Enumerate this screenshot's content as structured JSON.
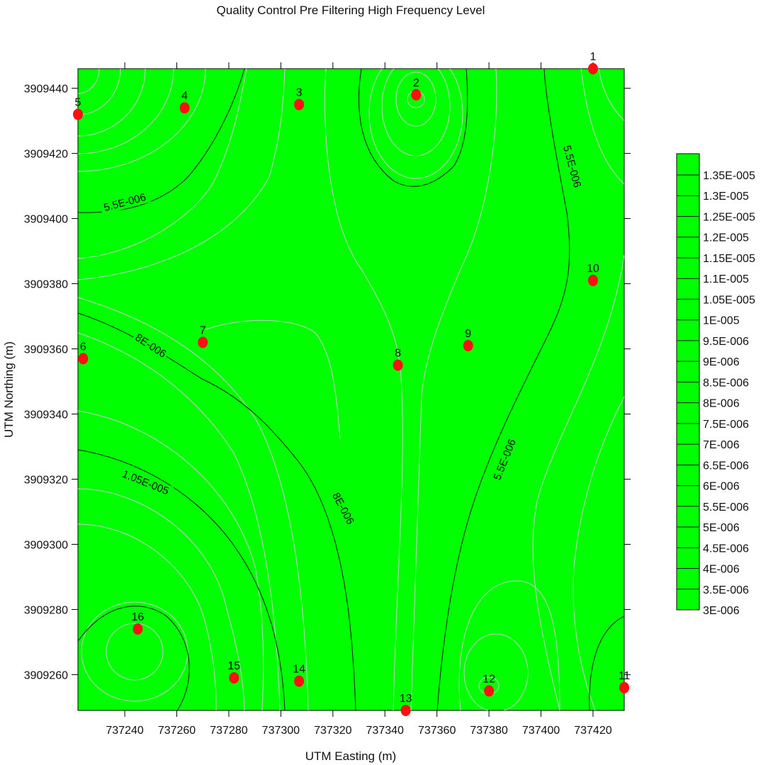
{
  "chart_data": {
    "type": "contour",
    "title": "Quality Control Pre Filtering High Frequency Level",
    "xlabel": "UTM Easting (m)",
    "ylabel": "UTM Northing (m)",
    "xlim": [
      737222,
      737432
    ],
    "ylim": [
      3909249,
      3909446
    ],
    "x_ticks": [
      737240,
      737260,
      737280,
      737300,
      737320,
      737340,
      737360,
      737380,
      737400,
      737420
    ],
    "y_ticks": [
      3909260,
      3909280,
      3909300,
      3909320,
      3909340,
      3909360,
      3909380,
      3909400,
      3909420,
      3909440
    ],
    "fill_color": "#00ff00",
    "line_color": "#1a1a1a",
    "minor_line_color": "#c8c8c8",
    "point_color": "#ff1010",
    "points": [
      {
        "label": "1",
        "x": 737420,
        "y": 3909446
      },
      {
        "label": "2",
        "x": 737352,
        "y": 3909438
      },
      {
        "label": "3",
        "x": 737307,
        "y": 3909435
      },
      {
        "label": "4",
        "x": 737263,
        "y": 3909434
      },
      {
        "label": "5",
        "x": 737222,
        "y": 3909432
      },
      {
        "label": "6",
        "x": 737224,
        "y": 3909357
      },
      {
        "label": "7",
        "x": 737270,
        "y": 3909362
      },
      {
        "label": "8",
        "x": 737345,
        "y": 3909355
      },
      {
        "label": "9",
        "x": 737372,
        "y": 3909361
      },
      {
        "label": "10",
        "x": 737420,
        "y": 3909381
      },
      {
        "label": "11",
        "x": 737432,
        "y": 3909256
      },
      {
        "label": "12",
        "x": 737380,
        "y": 3909255
      },
      {
        "label": "13",
        "x": 737348,
        "y": 3909249
      },
      {
        "label": "14",
        "x": 737307,
        "y": 3909258
      },
      {
        "label": "15",
        "x": 737282,
        "y": 3909259
      },
      {
        "label": "16",
        "x": 737245,
        "y": 3909274
      }
    ],
    "contour_labels": [
      {
        "text": "5.5E-006",
        "x": 737240,
        "y": 3909405
      },
      {
        "text": "5.5E-006",
        "x": 737412,
        "y": 3909416
      },
      {
        "text": "8E-006",
        "x": 737250,
        "y": 3909361
      },
      {
        "text": "5.5E-006",
        "x": 737386,
        "y": 3909326
      },
      {
        "text": "1.05E-005",
        "x": 737248,
        "y": 3909319
      },
      {
        "text": "8E-006",
        "x": 737324,
        "y": 3909311
      }
    ],
    "legend": {
      "position": "right",
      "levels": [
        "1.35E-005",
        "1.3E-005",
        "1.25E-005",
        "1.2E-005",
        "1.15E-005",
        "1.1E-005",
        "1.05E-005",
        "1E-005",
        "9.5E-006",
        "9E-006",
        "8.5E-006",
        "8E-006",
        "7.5E-006",
        "7E-006",
        "6.5E-006",
        "6E-006",
        "5.5E-006",
        "5E-006",
        "4.5E-006",
        "4E-006",
        "3.5E-006",
        "3E-006"
      ]
    }
  }
}
